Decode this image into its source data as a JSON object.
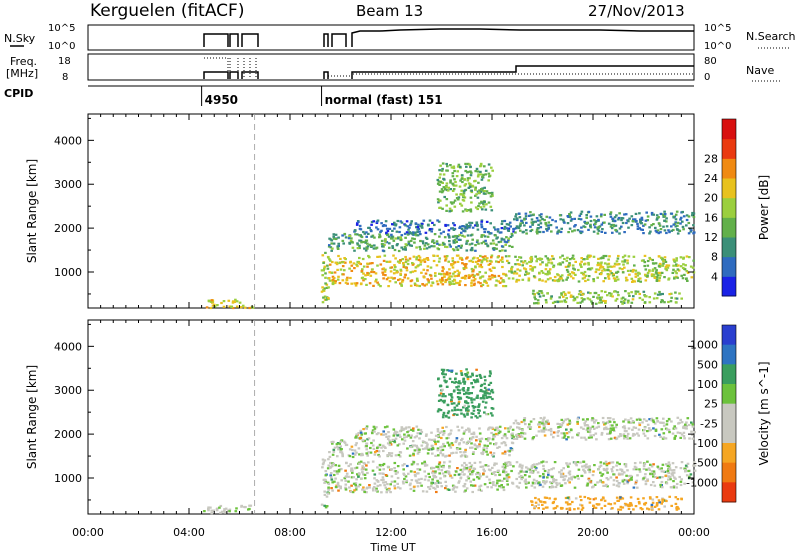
{
  "header": {
    "station": "Kerguelen (fitACF)",
    "beam": "Beam 13",
    "date": "27/Nov/2013"
  },
  "noise_panel": {
    "left_label": "N.Sky",
    "left_ticks": [
      "10^5",
      "10^0"
    ],
    "right_ticks": [
      "10^5",
      "10^0"
    ],
    "right_label": "N.Search"
  },
  "freq_panel": {
    "left_label_1": "Freq.",
    "left_label_2": "[MHz]",
    "left_ticks": [
      "18",
      "8"
    ],
    "right_ticks": [
      "80",
      "0"
    ],
    "right_label": "Nave"
  },
  "cpid_panel": {
    "label": "CPID",
    "entries": [
      {
        "time_h": 4.5,
        "text": "4950"
      },
      {
        "time_h": 9.25,
        "text": "normal (fast) 151"
      }
    ]
  },
  "x_axis": {
    "label": "Time UT",
    "range_h": [
      0,
      24
    ],
    "ticks": [
      {
        "h": 0,
        "label": "00:00"
      },
      {
        "h": 4,
        "label": "04:00"
      },
      {
        "h": 8,
        "label": "08:00"
      },
      {
        "h": 12,
        "label": "12:00"
      },
      {
        "h": 16,
        "label": "16:00"
      },
      {
        "h": 20,
        "label": "20:00"
      },
      {
        "h": 24,
        "label": "00:00"
      }
    ]
  },
  "chart_data": [
    {
      "type": "heatmap",
      "ylabel": "Slant Range [km]",
      "ylim": [
        180,
        4600
      ],
      "y_ticks": [
        1000,
        2000,
        3000,
        4000
      ],
      "colorbar": {
        "label": "Power [dB]",
        "ticks": [
          4,
          8,
          12,
          16,
          20,
          24,
          28
        ],
        "colors": [
          "#1a22e6",
          "#2f6bbf",
          "#3b8f78",
          "#62b04a",
          "#9bcf3e",
          "#e8c21e",
          "#f08a12",
          "#ea3a10",
          "#d81010"
        ]
      },
      "echo_regions": [
        {
          "t": [
            9.2,
            9.5
          ],
          "r": [
            300,
            1500
          ],
          "value": 18
        },
        {
          "t": [
            9.5,
            16.5
          ],
          "r": [
            700,
            1400
          ],
          "value": 22
        },
        {
          "t": [
            9.5,
            16.8
          ],
          "r": [
            1500,
            1900
          ],
          "value": 12
        },
        {
          "t": [
            10.5,
            17.0
          ],
          "r": [
            1900,
            2200
          ],
          "value": 7
        },
        {
          "t": [
            13.8,
            16.0
          ],
          "r": [
            2400,
            3500
          ],
          "value": 15
        },
        {
          "t": [
            16.5,
            24.0
          ],
          "r": [
            800,
            1400
          ],
          "value": 18
        },
        {
          "t": [
            16.8,
            24.0
          ],
          "r": [
            1900,
            2400
          ],
          "value": 10
        },
        {
          "t": [
            17.5,
            23.5
          ],
          "r": [
            300,
            600
          ],
          "value": 16
        },
        {
          "t": [
            4.5,
            6.5
          ],
          "r": [
            200,
            400
          ],
          "value": 20
        }
      ]
    },
    {
      "type": "heatmap",
      "ylabel": "Slant Range [km]",
      "ylim": [
        180,
        4600
      ],
      "y_ticks": [
        1000,
        2000,
        3000,
        4000
      ],
      "colorbar": {
        "label": "Velocity [m s^-1]",
        "ticks": [
          1000,
          500,
          100,
          25,
          -25,
          -100,
          -500,
          -1000
        ],
        "colors": [
          "#2a3fcf",
          "#2e74c2",
          "#3a9e5e",
          "#6cc23c",
          "#c8c8c0",
          "#c8c8c0",
          "#f5a623",
          "#f07a12",
          "#ea3a10"
        ]
      },
      "echo_regions": [
        {
          "t": [
            9.2,
            9.5
          ],
          "r": [
            300,
            1500
          ],
          "value": 0
        },
        {
          "t": [
            9.5,
            16.5
          ],
          "r": [
            700,
            1400
          ],
          "value": 0
        },
        {
          "t": [
            9.5,
            16.8
          ],
          "r": [
            1500,
            1900
          ],
          "value": 0
        },
        {
          "t": [
            10.5,
            17.0
          ],
          "r": [
            1900,
            2200
          ],
          "value": 0
        },
        {
          "t": [
            13.8,
            16.0
          ],
          "r": [
            2400,
            3500
          ],
          "value": 200
        },
        {
          "t": [
            16.5,
            24.0
          ],
          "r": [
            800,
            1400
          ],
          "value": 0
        },
        {
          "t": [
            16.8,
            24.0
          ],
          "r": [
            1900,
            2400
          ],
          "value": 0
        },
        {
          "t": [
            17.5,
            23.5
          ],
          "r": [
            300,
            600
          ],
          "value": -150
        },
        {
          "t": [
            4.5,
            6.5
          ],
          "r": [
            200,
            400
          ],
          "value": 0
        }
      ]
    }
  ]
}
